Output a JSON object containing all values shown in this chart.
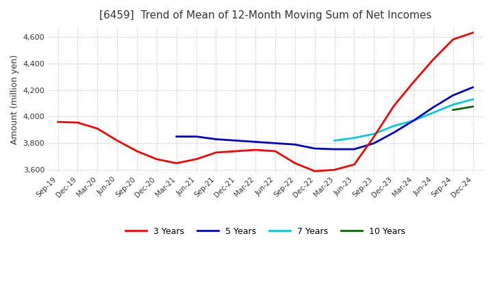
{
  "title": "[6459]  Trend of Mean of 12-Month Moving Sum of Net Incomes",
  "ylabel": "Amount (million yen)",
  "title_color": "#333333",
  "background_color": "#ffffff",
  "grid_color": "#bbbbbb",
  "ylim": [
    3580,
    4680
  ],
  "yticks": [
    3600,
    3800,
    4000,
    4200,
    4400,
    4600
  ],
  "line_colors": {
    "3y": "#ff0000",
    "5y": "#0000cc",
    "7y": "#00ccdd",
    "10y": "#006600"
  },
  "line_width": 2.0,
  "legend": [
    "3 Years",
    "5 Years",
    "7 Years",
    "10 Years"
  ],
  "x_labels": [
    "Sep-19",
    "Dec-19",
    "Mar-20",
    "Jun-20",
    "Sep-20",
    "Dec-20",
    "Mar-21",
    "Jun-21",
    "Sep-21",
    "Dec-21",
    "Mar-22",
    "Jun-22",
    "Sep-22",
    "Dec-22",
    "Mar-23",
    "Jun-23",
    "Sep-23",
    "Dec-23",
    "Mar-24",
    "Jun-24",
    "Sep-24",
    "Dec-24"
  ],
  "data_3y": [
    3960,
    3955,
    3910,
    3820,
    3740,
    3680,
    3650,
    3680,
    3730,
    3740,
    3750,
    3740,
    3650,
    3590,
    3600,
    3640,
    3850,
    4080,
    4260,
    4430,
    4580,
    4630
  ],
  "data_5y": [
    null,
    null,
    null,
    null,
    null,
    null,
    3850,
    3850,
    3830,
    3820,
    3810,
    3800,
    3790,
    3760,
    3755,
    3755,
    3800,
    3880,
    3970,
    4070,
    4160,
    4220
  ],
  "data_7y": [
    null,
    null,
    null,
    null,
    null,
    null,
    null,
    null,
    null,
    null,
    null,
    null,
    null,
    null,
    3820,
    3840,
    3870,
    3930,
    3970,
    4030,
    4090,
    4130
  ],
  "data_10y": [
    null,
    null,
    null,
    null,
    null,
    null,
    null,
    null,
    null,
    null,
    null,
    null,
    null,
    null,
    null,
    null,
    null,
    null,
    null,
    null,
    4050,
    4075
  ]
}
